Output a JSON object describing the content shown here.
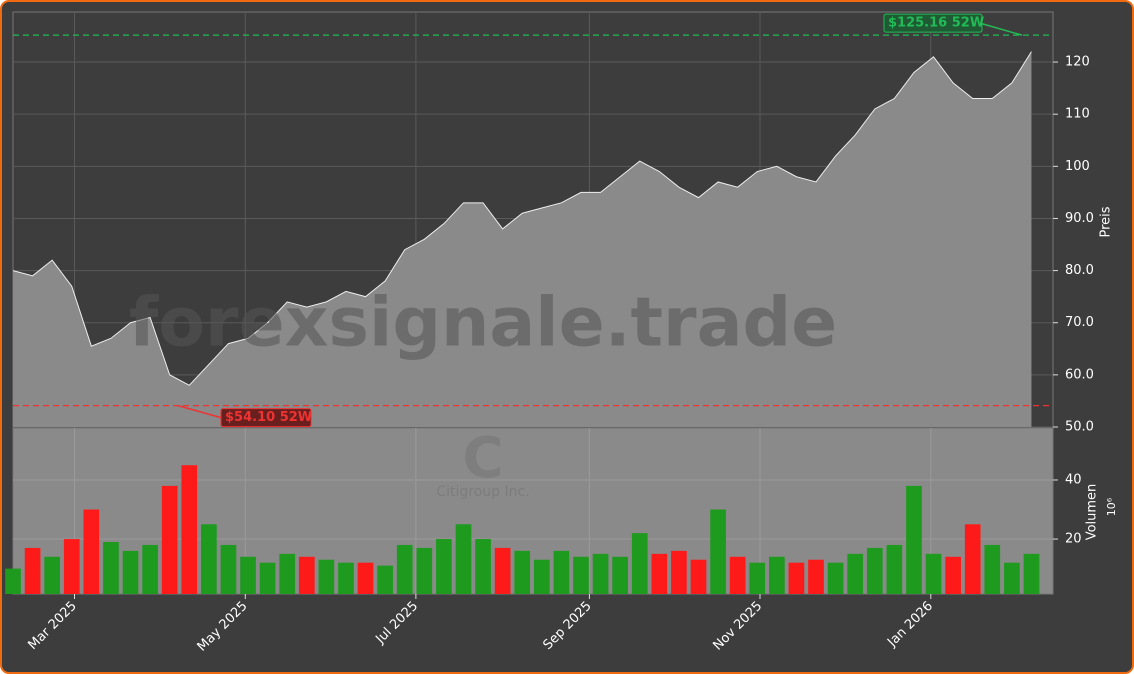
{
  "chart_data": {
    "type": "area",
    "y_label": "Preis",
    "watermarks": [
      "forexsignale.trade",
      "C",
      "Citigroup Inc."
    ],
    "x": [
      0,
      1,
      2,
      3,
      4,
      5,
      6,
      7,
      8,
      9,
      10,
      11,
      12,
      13,
      14,
      15,
      16,
      17,
      18,
      19,
      20,
      21,
      22,
      23,
      24,
      25,
      26,
      27,
      28,
      29,
      30,
      31,
      32,
      33,
      34,
      35,
      36,
      37,
      38,
      39,
      40,
      41,
      42,
      43,
      44,
      45,
      46,
      47,
      48,
      49,
      50,
      51,
      52
    ],
    "xlim": [
      0,
      53.1
    ],
    "xticks": [
      {
        "value": 3.14,
        "label": "Mar 2025"
      },
      {
        "value": 11.86,
        "label": "May 2025"
      },
      {
        "value": 20.57,
        "label": "Jul 2025"
      },
      {
        "value": 29.43,
        "label": "Sep 2025"
      },
      {
        "value": 38.14,
        "label": "Nov 2025"
      },
      {
        "value": 46.86,
        "label": "Jan 2026"
      }
    ],
    "series": [
      {
        "name": "C",
        "color": "#8a8a8a",
        "values": [
          80,
          79,
          82,
          77,
          65.5,
          67,
          70,
          71,
          60,
          58,
          62,
          66,
          67,
          70,
          74,
          73,
          74,
          76,
          75,
          78,
          84,
          86,
          89,
          93,
          93,
          88,
          91,
          92,
          93,
          95,
          95,
          98,
          101,
          99,
          96,
          94,
          97,
          96,
          99,
          100,
          98,
          97,
          102,
          106,
          111,
          113,
          118,
          121,
          116,
          113,
          113,
          116,
          122
        ]
      }
    ],
    "ylim": [
      50,
      129.6
    ],
    "yticks": [
      {
        "value": 50,
        "label": "50.0"
      },
      {
        "value": 60,
        "label": "60.0"
      },
      {
        "value": 70,
        "label": "70.0"
      },
      {
        "value": 80,
        "label": "80.0"
      },
      {
        "value": 90,
        "label": "90.0"
      },
      100,
      110,
      120
    ],
    "grid": true,
    "annotations": [
      {
        "text": "$125.16 52W",
        "value": 125.16,
        "color": "#22bb55"
      },
      {
        "text": "$54.10 52W",
        "value": 54.1,
        "color": "#ee3333"
      }
    ],
    "volume": {
      "type": "bar",
      "y_label": "Volumen",
      "multiplier": "10⁶",
      "up_color": "#1e9a1e",
      "down_color": "#ff1a1a",
      "values": [
        10,
        17,
        14,
        20,
        30,
        19,
        16,
        18,
        38,
        45,
        25,
        18,
        14,
        12,
        15,
        14,
        13,
        12,
        12,
        11,
        18,
        17,
        20,
        25,
        20,
        17,
        16,
        13,
        16,
        14,
        15,
        14,
        22,
        15,
        16,
        13,
        30,
        14,
        12,
        14,
        12,
        13,
        12,
        15,
        17,
        18,
        38,
        15,
        14,
        25,
        18,
        12,
        15
      ],
      "ylim": [
        1.4,
        57.6
      ],
      "yticks": [
        20,
        40
      ]
    }
  }
}
